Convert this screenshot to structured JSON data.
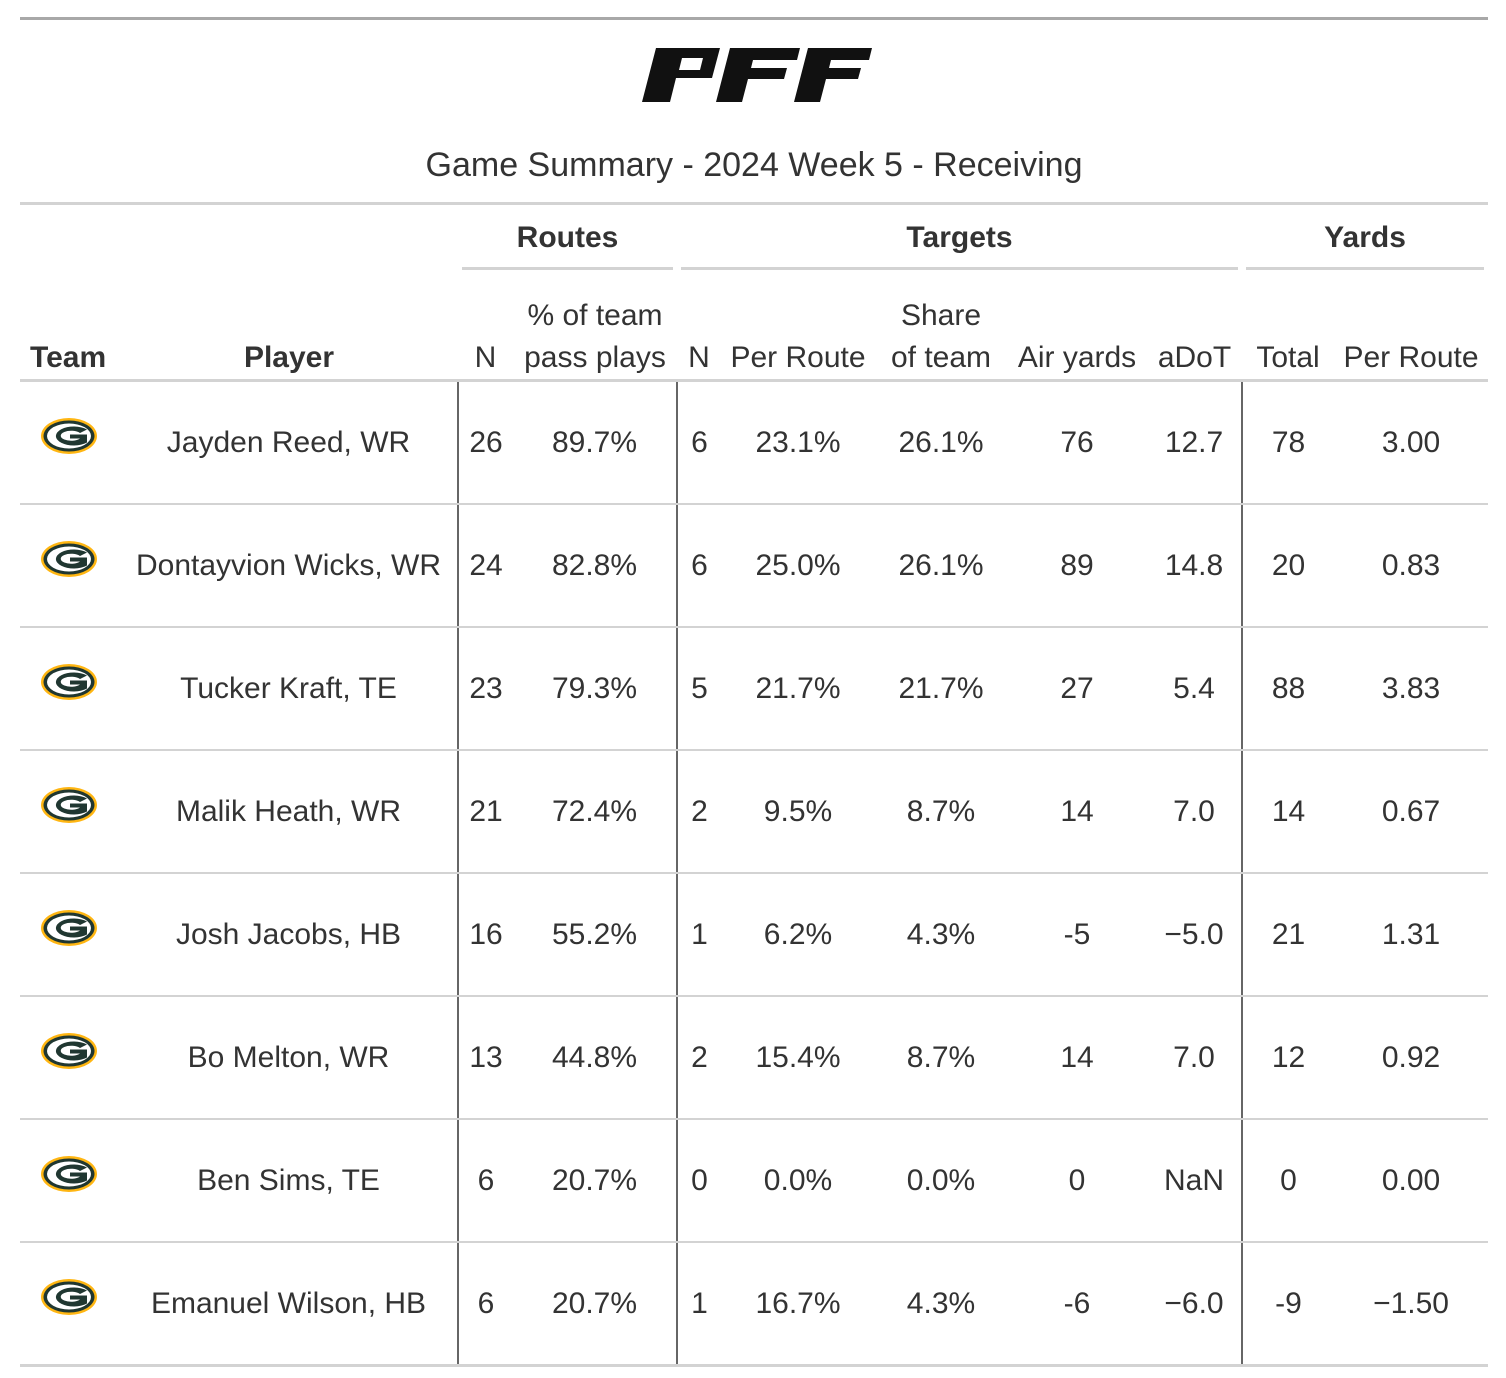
{
  "header": {
    "logo_text": "PFF",
    "subtitle": "Game Summary - 2024 Week 5 - Receiving"
  },
  "spanners": {
    "routes": "Routes",
    "targets": "Targets",
    "yards": "Yards"
  },
  "columns": {
    "team": "Team",
    "player": "Player",
    "routes_n": "N",
    "routes_pct_line1": "% of team",
    "routes_pct_line2": "pass plays",
    "targets_n": "N",
    "targets_per_route": "Per Route",
    "targets_share_line1": "Share",
    "targets_share_line2": "of team",
    "air_yards": "Air yards",
    "adot": "aDoT",
    "yards_total": "Total",
    "yards_per_route": "Per Route"
  },
  "team_logo": {
    "name": "packers-logo-icon",
    "green": "#203731",
    "gold": "#FFB612"
  },
  "rows": [
    {
      "player": "Jayden Reed, WR",
      "routes_n": "26",
      "routes_pct": "89.7%",
      "targets_n": "6",
      "per_route": "23.1%",
      "share": "26.1%",
      "air_yards": "76",
      "adot": "12.7",
      "yards_total": "78",
      "yards_per_route": "3.00"
    },
    {
      "player": "Dontayvion Wicks, WR",
      "routes_n": "24",
      "routes_pct": "82.8%",
      "targets_n": "6",
      "per_route": "25.0%",
      "share": "26.1%",
      "air_yards": "89",
      "adot": "14.8",
      "yards_total": "20",
      "yards_per_route": "0.83"
    },
    {
      "player": "Tucker Kraft, TE",
      "routes_n": "23",
      "routes_pct": "79.3%",
      "targets_n": "5",
      "per_route": "21.7%",
      "share": "21.7%",
      "air_yards": "27",
      "adot": "5.4",
      "yards_total": "88",
      "yards_per_route": "3.83"
    },
    {
      "player": "Malik Heath, WR",
      "routes_n": "21",
      "routes_pct": "72.4%",
      "targets_n": "2",
      "per_route": "9.5%",
      "share": "8.7%",
      "air_yards": "14",
      "adot": "7.0",
      "yards_total": "14",
      "yards_per_route": "0.67"
    },
    {
      "player": "Josh Jacobs, HB",
      "routes_n": "16",
      "routes_pct": "55.2%",
      "targets_n": "1",
      "per_route": "6.2%",
      "share": "4.3%",
      "air_yards": "-5",
      "adot": "−5.0",
      "yards_total": "21",
      "yards_per_route": "1.31"
    },
    {
      "player": "Bo Melton, WR",
      "routes_n": "13",
      "routes_pct": "44.8%",
      "targets_n": "2",
      "per_route": "15.4%",
      "share": "8.7%",
      "air_yards": "14",
      "adot": "7.0",
      "yards_total": "12",
      "yards_per_route": "0.92"
    },
    {
      "player": "Ben Sims, TE",
      "routes_n": "6",
      "routes_pct": "20.7%",
      "targets_n": "0",
      "per_route": "0.0%",
      "share": "0.0%",
      "air_yards": "0",
      "adot": "NaN",
      "yards_total": "0",
      "yards_per_route": "0.00"
    },
    {
      "player": "Emanuel Wilson, HB",
      "routes_n": "6",
      "routes_pct": "20.7%",
      "targets_n": "1",
      "per_route": "16.7%",
      "share": "4.3%",
      "air_yards": "-6",
      "adot": "−6.0",
      "yards_total": "-9",
      "yards_per_route": "−1.50"
    }
  ]
}
